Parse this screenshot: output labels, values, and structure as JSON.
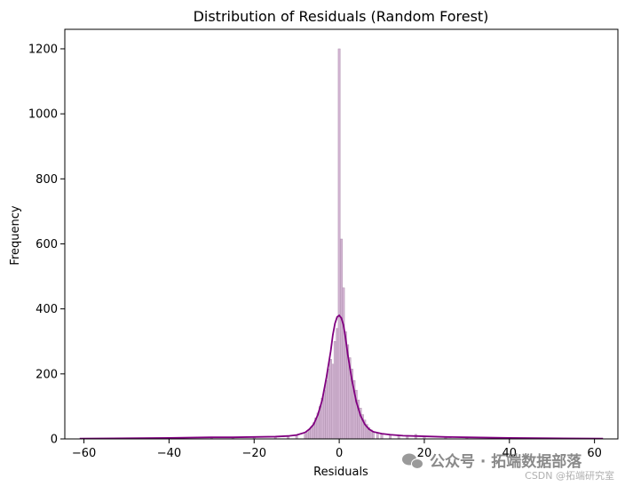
{
  "chart_data": {
    "type": "bar",
    "title": "Distribution of Residuals (Random Forest)",
    "xlabel": "Residuals",
    "ylabel": "Frequency",
    "xlim": [
      -64.5,
      65.5
    ],
    "ylim": [
      0,
      1260
    ],
    "xticks": [
      -60,
      -40,
      -20,
      0,
      20,
      40,
      60
    ],
    "yticks": [
      0,
      200,
      400,
      600,
      800,
      1000,
      1200
    ],
    "grid": false,
    "colors": {
      "bars_fill": "#c9a6c9",
      "bars_edge": "#a98aa9",
      "kde": "#800080"
    },
    "histogram": {
      "bins": [
        {
          "x": -8,
          "count": 15
        },
        {
          "x": -7.5,
          "count": 20
        },
        {
          "x": -7,
          "count": 28
        },
        {
          "x": -6.5,
          "count": 38
        },
        {
          "x": -6,
          "count": 50
        },
        {
          "x": -5.5,
          "count": 65
        },
        {
          "x": -5,
          "count": 80
        },
        {
          "x": -4.5,
          "count": 100
        },
        {
          "x": -4,
          "count": 125
        },
        {
          "x": -3.5,
          "count": 150
        },
        {
          "x": -3,
          "count": 180
        },
        {
          "x": -2.5,
          "count": 215
        },
        {
          "x": -2,
          "count": 245
        },
        {
          "x": -1.5,
          "count": 230
        },
        {
          "x": -1,
          "count": 300
        },
        {
          "x": -0.5,
          "count": 340
        },
        {
          "x": 0,
          "count": 1200
        },
        {
          "x": 0.5,
          "count": 615
        },
        {
          "x": 1,
          "count": 465
        },
        {
          "x": 1.5,
          "count": 330
        },
        {
          "x": 2,
          "count": 290
        },
        {
          "x": 2.5,
          "count": 250
        },
        {
          "x": 3,
          "count": 215
        },
        {
          "x": 3.5,
          "count": 180
        },
        {
          "x": 4,
          "count": 150
        },
        {
          "x": 4.5,
          "count": 120
        },
        {
          "x": 5,
          "count": 95
        },
        {
          "x": 5.5,
          "count": 75
        },
        {
          "x": 6,
          "count": 58
        },
        {
          "x": 6.5,
          "count": 45
        },
        {
          "x": 7,
          "count": 35
        },
        {
          "x": 7.5,
          "count": 28
        },
        {
          "x": 8,
          "count": 22
        },
        {
          "x": 9,
          "count": 18
        },
        {
          "x": 10,
          "count": 15
        },
        {
          "x": 12,
          "count": 12
        },
        {
          "x": 14,
          "count": 10
        },
        {
          "x": 16,
          "count": 9
        },
        {
          "x": 18,
          "count": 14
        },
        {
          "x": 20,
          "count": 8
        },
        {
          "x": 25,
          "count": 6
        },
        {
          "x": 30,
          "count": 4
        },
        {
          "x": -10,
          "count": 10
        },
        {
          "x": -12,
          "count": 8
        },
        {
          "x": -15,
          "count": 6
        },
        {
          "x": -20,
          "count": 5
        },
        {
          "x": -25,
          "count": 4
        },
        {
          "x": -30,
          "count": 3
        }
      ],
      "bin_width": 0.5
    },
    "kde": {
      "x": [
        -61,
        -50,
        -40,
        -35,
        -30,
        -25,
        -20,
        -15,
        -12,
        -10,
        -8,
        -7,
        -6,
        -5,
        -4,
        -3,
        -2,
        -1.5,
        -1,
        -0.5,
        0,
        0.5,
        1,
        1.5,
        2,
        3,
        4,
        5,
        6,
        7,
        8,
        10,
        12,
        15,
        20,
        25,
        30,
        40,
        50,
        62
      ],
      "y": [
        1,
        2,
        3,
        4,
        5,
        5,
        6,
        7,
        9,
        12,
        20,
        30,
        45,
        75,
        120,
        190,
        270,
        320,
        355,
        375,
        380,
        372,
        350,
        310,
        260,
        180,
        115,
        72,
        45,
        30,
        22,
        16,
        13,
        10,
        8,
        6,
        5,
        3,
        2,
        1
      ]
    }
  },
  "watermark": {
    "main": "公众号 · 拓端数据部落",
    "sub": "CSDN @拓端研究室"
  }
}
